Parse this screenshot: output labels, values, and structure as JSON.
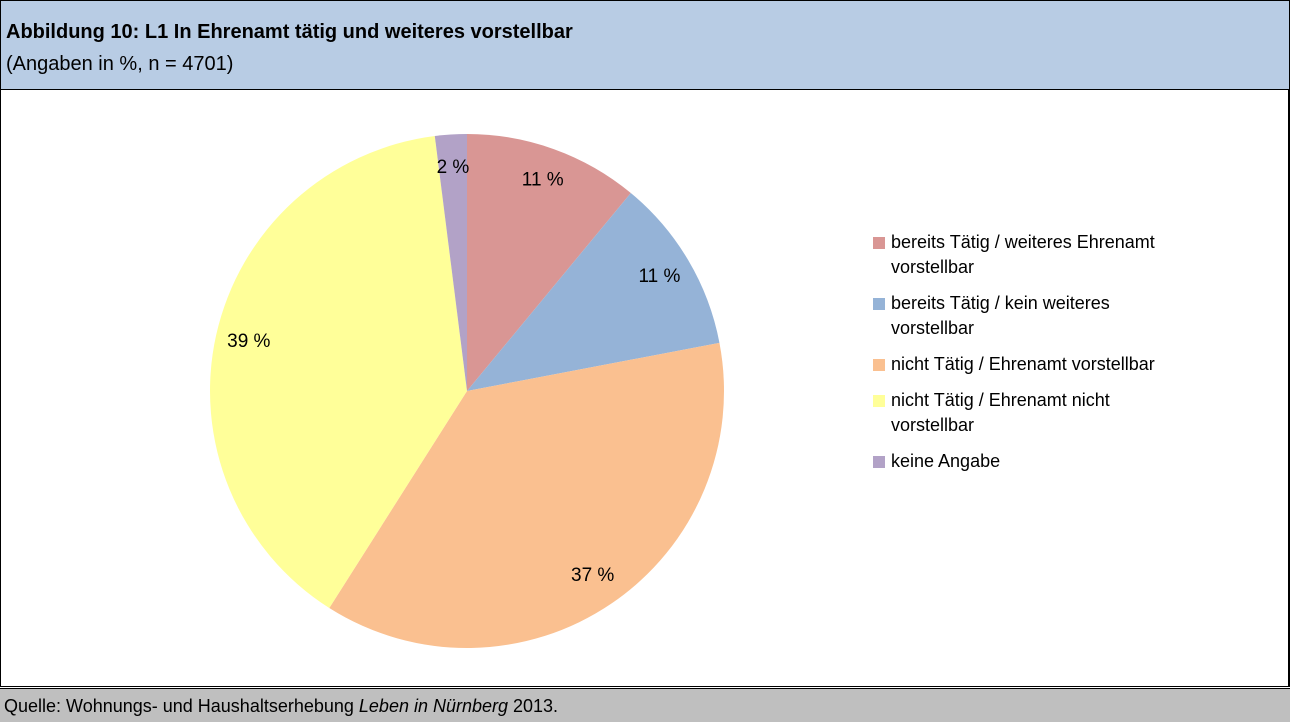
{
  "chart_data": {
    "type": "pie",
    "title": "Abbildung 10: L1 In Ehrenamt tätig und weiteres vorstellbar",
    "subtitle": "(Angaben in %, n = 4701)",
    "categories": [
      "bereits Tätig / weiteres Ehrenamt vorstellbar",
      "bereits Tätig / kein weiteres vorstellbar",
      "nicht Tätig / Ehrenamt vorstellbar",
      "nicht Tätig / Ehrenamt nicht vorstellbar",
      "keine Angabe"
    ],
    "values": [
      11,
      11,
      37,
      39,
      2
    ],
    "value_labels": [
      "11 %",
      "11 %",
      "37 %",
      "39 %",
      "2 %"
    ],
    "colors": [
      "#d99694",
      "#95b3d7",
      "#fac090",
      "#ffff99",
      "#b2a2c7"
    ],
    "legend": "right",
    "footer": {
      "prefix": "Quelle: Wohnungs- und Haushaltserhebung ",
      "italic": "Leben in Nürnberg",
      "suffix": " 2013."
    }
  }
}
